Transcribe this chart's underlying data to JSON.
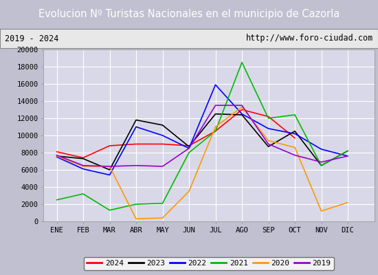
{
  "title": "Evolucion Nº Turistas Nacionales en el municipio de Cazorla",
  "subtitle_left": "2019 - 2024",
  "subtitle_right": "http://www.foro-ciudad.com",
  "months": [
    "ENE",
    "FEB",
    "MAR",
    "ABR",
    "MAY",
    "JUN",
    "JUL",
    "AGO",
    "SEP",
    "OCT",
    "NOV",
    "DIC"
  ],
  "series": {
    "2024": {
      "color": "#ff0000",
      "data": [
        8100,
        7400,
        8800,
        9000,
        9000,
        8800,
        10500,
        13000,
        12200,
        9700,
        null,
        null
      ]
    },
    "2023": {
      "color": "#000000",
      "data": [
        7600,
        7300,
        6000,
        11800,
        11200,
        8700,
        12500,
        12400,
        8700,
        10500,
        6500,
        8200
      ]
    },
    "2022": {
      "color": "#0000ff",
      "data": [
        7500,
        6100,
        5400,
        11000,
        10000,
        8500,
        15900,
        12500,
        10800,
        10200,
        8400,
        7600
      ]
    },
    "2021": {
      "color": "#00bb00",
      "data": [
        2500,
        3200,
        1300,
        2000,
        2100,
        8000,
        10500,
        18500,
        12000,
        12400,
        6500,
        8200
      ]
    },
    "2020": {
      "color": "#ff9900",
      "data": [
        7600,
        6400,
        6400,
        300,
        400,
        3500,
        11000,
        13300,
        9400,
        8600,
        1200,
        2200
      ]
    },
    "2019": {
      "color": "#9900cc",
      "data": [
        7700,
        6500,
        6400,
        6500,
        6400,
        8500,
        13500,
        13500,
        9000,
        7700,
        6900,
        7600
      ]
    }
  },
  "ylim": [
    0,
    20000
  ],
  "yticks": [
    0,
    2000,
    4000,
    6000,
    8000,
    10000,
    12000,
    14000,
    16000,
    18000,
    20000
  ],
  "title_bg_color": "#4c72b0",
  "title_text_color": "#ffffff",
  "plot_bg_color": "#d8d8e8",
  "outer_bg_color": "#c0c0d0",
  "grid_color": "#ffffff",
  "legend_order": [
    "2024",
    "2023",
    "2022",
    "2021",
    "2020",
    "2019"
  ]
}
